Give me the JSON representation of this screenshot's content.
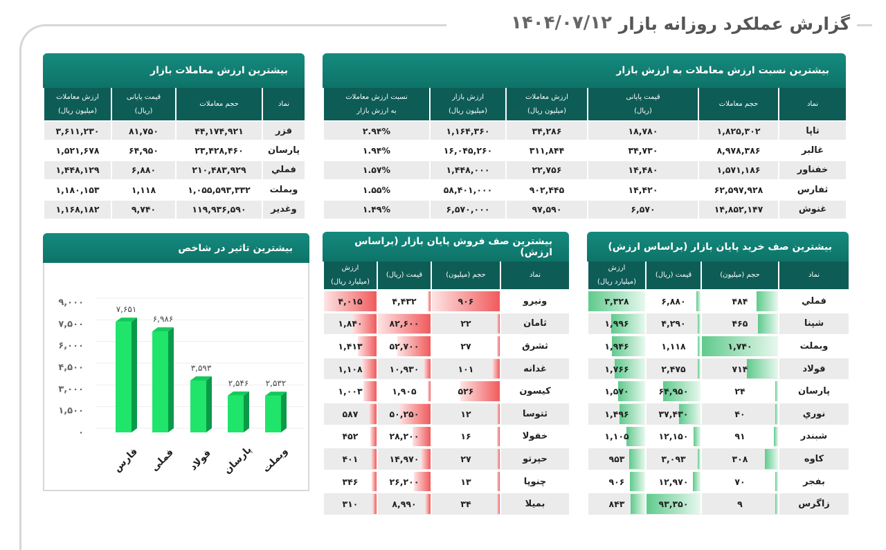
{
  "header": {
    "title": "گزارش عملکرد روزانه بازار",
    "date": "۱۴۰۴/۰۷/۱۲"
  },
  "top_value": {
    "title": "بیشترین ارزش معاملات بازار",
    "columns": [
      "نماد",
      "حجم معاملات",
      "قیمت پایانی\n(ریال)",
      "ارزش معاملات\n(میلیون ریال)"
    ],
    "rows": [
      [
        "فزر",
        "۴۴,۱۷۴,۹۲۱",
        "۸۱,۷۵۰",
        "۳,۶۱۱,۲۳۰"
      ],
      [
        "پارسان",
        "۲۳,۴۲۸,۴۶۰",
        "۶۴,۹۵۰",
        "۱,۵۲۱,۶۷۸"
      ],
      [
        "فملي",
        "۲۱۰,۴۸۳,۹۲۹",
        "۶,۸۸۰",
        "۱,۴۴۸,۱۲۹"
      ],
      [
        "وبملت",
        "۱,۰۵۵,۵۹۳,۳۳۲",
        "۱,۱۱۸",
        "۱,۱۸۰,۱۵۳"
      ],
      [
        "وغدير",
        "۱۱۹,۹۳۶,۵۹۰",
        "۹,۷۴۰",
        "۱,۱۶۸,۱۸۲"
      ]
    ]
  },
  "top_ratio": {
    "title": "بیشترین نسبت ارزش معاملات به ارزش بازار",
    "columns": [
      "نماد",
      "حجم معاملات",
      "قیمت پایانی\n(ریال)",
      "ارزش معاملات\n(میلیون ریال)",
      "ارزش بازار\n(میلیون ریال)",
      "نسبت ارزش معاملات\nبه ارزش بازار"
    ],
    "rows": [
      [
        "تاپا",
        "۱,۸۲۵,۳۰۲",
        "۱۸,۷۸۰",
        "۳۴,۲۸۶",
        "۱,۱۶۴,۳۶۰",
        "۲.۹۴%"
      ],
      [
        "غالبر",
        "۸,۹۷۸,۳۸۶",
        "۳۴,۷۳۰",
        "۳۱۱,۸۴۴",
        "۱۶,۰۴۵,۲۶۰",
        "۱.۹۴%"
      ],
      [
        "خفناور",
        "۱,۵۷۱,۱۸۶",
        "۱۴,۴۸۰",
        "۲۲,۷۵۶",
        "۱,۴۴۸,۰۰۰",
        "۱.۵۷%"
      ],
      [
        "ثفارس",
        "۶۲,۵۹۷,۹۲۸",
        "۱۴,۴۲۰",
        "۹۰۲,۴۴۵",
        "۵۸,۴۰۱,۰۰۰",
        "۱.۵۵%"
      ],
      [
        "غنوش",
        "۱۴,۸۵۲,۱۴۷",
        "۶,۵۷۰",
        "۹۷,۵۹۰",
        "۶,۵۷۰,۰۰۰",
        "۱.۴۹%"
      ]
    ]
  },
  "sell_queue": {
    "title": "بیشترین صف فروش پایان بازار (براساس ارزش)",
    "bar_color": "#f15a5c",
    "columns": [
      "نماد",
      "حجم (میلیون)",
      "قیمت (ریال)",
      "ارزش\n(میلیارد ریال)"
    ],
    "rows": [
      [
        "ونيرو",
        "۹۰۶",
        "۴,۴۳۲",
        "۴,۰۱۵"
      ],
      [
        "ثامان",
        "۲۲",
        "۸۲,۶۰۰",
        "۱,۸۴۰"
      ],
      [
        "ثشرق",
        "۲۷",
        "۵۲,۷۰۰",
        "۱,۴۱۳"
      ],
      [
        "غدانه",
        "۱۰۱",
        "۱۰,۹۳۰",
        "۱,۱۰۸"
      ],
      [
        "كيسون",
        "۵۲۶",
        "۱,۹۰۵",
        "۱,۰۰۳"
      ],
      [
        "ثتوسا",
        "۱۲",
        "۵۰,۲۵۰",
        "۵۸۷"
      ],
      [
        "خفولا",
        "۱۶",
        "۲۸,۲۰۰",
        "۴۵۲"
      ],
      [
        "حپرتو",
        "۲۷",
        "۱۴,۹۷۰",
        "۴۰۱"
      ],
      [
        "چنوپا",
        "۱۳",
        "۲۶,۲۰۰",
        "۳۴۶"
      ],
      [
        "بميلا",
        "۳۴",
        "۸,۹۹۰",
        "۳۱۰"
      ]
    ]
  },
  "buy_queue": {
    "title": "بیشترین صف خرید پایان بازار (براساس ارزش)",
    "bar_color": "#3dbb70",
    "columns": [
      "نماد",
      "حجم (میلیون)",
      "قیمت (ریال)",
      "ارزش\n(میلیارد ریال)"
    ],
    "rows": [
      [
        "فملي",
        "۴۸۴",
        "۶,۸۸۰",
        "۳,۳۲۸"
      ],
      [
        "شپنا",
        "۴۶۵",
        "۴,۲۹۰",
        "۱,۹۹۶"
      ],
      [
        "وبملت",
        "۱,۷۴۰",
        "۱,۱۱۸",
        "۱,۹۴۶"
      ],
      [
        "فولاد",
        "۷۱۴",
        "۲,۴۷۵",
        "۱,۷۶۶"
      ],
      [
        "پارسان",
        "۲۴",
        "۶۴,۹۵۰",
        "۱,۵۷۰"
      ],
      [
        "نوري",
        "۴۰",
        "۳۷,۴۳۰",
        "۱,۴۹۶"
      ],
      [
        "شبندر",
        "۹۱",
        "۱۲,۱۵۰",
        "۱,۱۰۵"
      ],
      [
        "كاوه",
        "۳۰۸",
        "۳,۰۹۳",
        "۹۵۳"
      ],
      [
        "بفجر",
        "۷۰",
        "۱۲,۹۷۰",
        "۹۰۶"
      ],
      [
        "زاگرس",
        "۹",
        "۹۳,۳۵۰",
        "۸۴۳"
      ]
    ]
  },
  "chart_data": {
    "type": "bar",
    "title": "بیشترین تاثیر در شاخص",
    "categories": [
      "فارس",
      "فملی",
      "فولاد",
      "پارسان",
      "وبملت"
    ],
    "values": [
      7651,
      6986,
      3593,
      2546,
      2532
    ],
    "value_labels": [
      "۷,۶۵۱",
      "۶,۹۸۶",
      "۳,۵۹۳",
      "۲,۵۴۶",
      "۲,۵۳۲"
    ],
    "ylim": [
      0,
      9000
    ],
    "yticks": [
      0,
      1500,
      3000,
      4500,
      6000,
      7500,
      9000
    ],
    "ytick_labels": [
      "۰",
      "۱,۵۰۰",
      "۳,۰۰۰",
      "۴,۵۰۰",
      "۶,۰۰۰",
      "۷,۵۰۰",
      "۹,۰۰۰"
    ],
    "grid": true,
    "colors": {
      "front": "#1fe56b",
      "side": "#0b9a48",
      "top": "#15c95a"
    }
  }
}
